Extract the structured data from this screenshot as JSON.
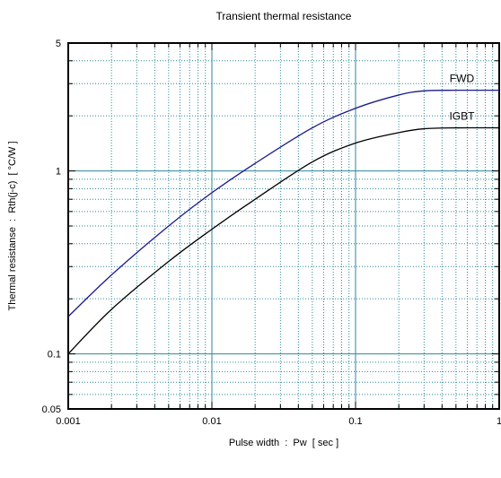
{
  "chart_data": {
    "type": "line",
    "title": "Transient thermal resistance",
    "xlabel": "Pulse width  :  Pw  [ sec ]",
    "ylabel": "Thermal resistanse  :  Rth(j-c)  [ °C/W ]",
    "xscale": "log",
    "yscale": "log",
    "xlim": [
      0.001,
      1
    ],
    "ylim": [
      0.05,
      5
    ],
    "grid": true,
    "x_tick_labels": [
      "0.001",
      "0.01",
      "0.1",
      "1"
    ],
    "y_tick_labels": [
      "0.05",
      "0.1",
      "1",
      "5"
    ],
    "series": [
      {
        "name": "FWD",
        "color": "#1a1a8c",
        "points": [
          [
            0.001,
            0.16
          ],
          [
            0.002,
            0.27
          ],
          [
            0.005,
            0.5
          ],
          [
            0.01,
            0.76
          ],
          [
            0.02,
            1.1
          ],
          [
            0.05,
            1.72
          ],
          [
            0.1,
            2.2
          ],
          [
            0.2,
            2.6
          ],
          [
            0.3,
            2.74
          ],
          [
            0.5,
            2.76
          ],
          [
            1,
            2.76
          ]
        ]
      },
      {
        "name": "IGBT",
        "color": "#000000",
        "points": [
          [
            0.001,
            0.1
          ],
          [
            0.002,
            0.175
          ],
          [
            0.005,
            0.32
          ],
          [
            0.01,
            0.48
          ],
          [
            0.02,
            0.7
          ],
          [
            0.05,
            1.12
          ],
          [
            0.1,
            1.42
          ],
          [
            0.2,
            1.62
          ],
          [
            0.3,
            1.7
          ],
          [
            0.5,
            1.72
          ],
          [
            1,
            1.72
          ]
        ]
      }
    ]
  }
}
